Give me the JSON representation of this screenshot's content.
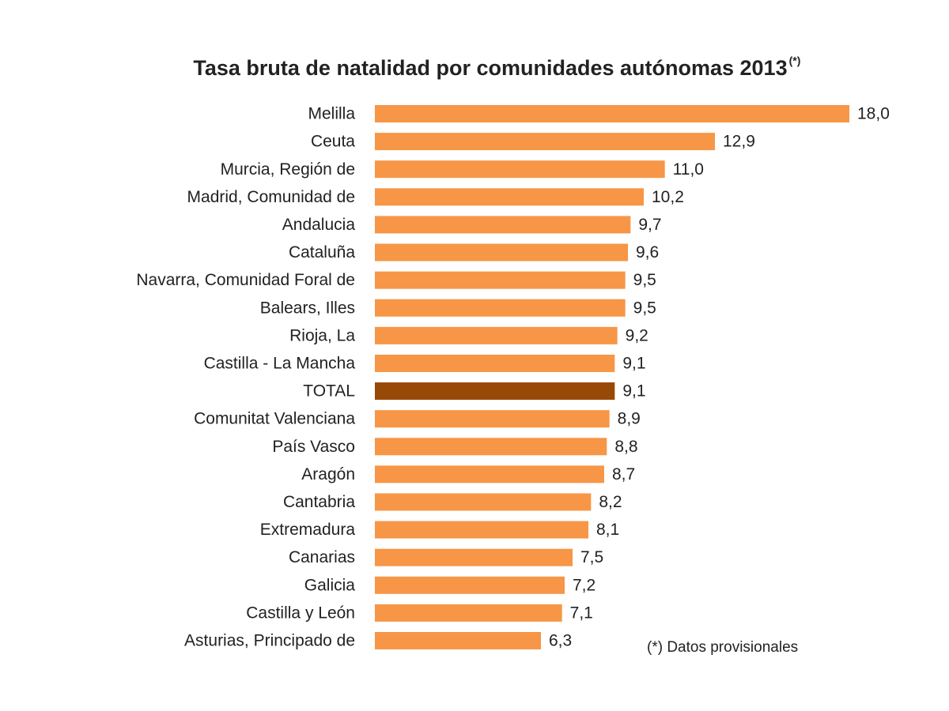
{
  "chart_data": {
    "type": "bar",
    "orientation": "horizontal",
    "title": "Tasa bruta de natalidad por comunidades autónomas 2013",
    "title_superscript": "(*)",
    "footnote": "(*)  Datos provisionales",
    "categories": [
      "Melilla",
      "Ceuta",
      "Murcia, Región de",
      "Madrid, Comunidad de",
      "Andalucia",
      "Cataluña",
      "Navarra, Comunidad Foral de",
      "Balears, Illes",
      "Rioja, La",
      "Castilla - La Mancha",
      "TOTAL",
      "Comunitat Valenciana",
      "País Vasco",
      "Aragón",
      "Cantabria",
      "Extremadura",
      "Canarias",
      "Galicia",
      "Castilla y León",
      "Asturias, Principado de"
    ],
    "values": [
      18.0,
      12.9,
      11.0,
      10.2,
      9.7,
      9.6,
      9.5,
      9.5,
      9.2,
      9.1,
      9.1,
      8.9,
      8.8,
      8.7,
      8.2,
      8.1,
      7.5,
      7.2,
      7.1,
      6.3
    ],
    "value_labels": [
      "18,0",
      "12,9",
      "11,0",
      "10,2",
      "9,7",
      "9,6",
      "9,5",
      "9,5",
      "9,2",
      "9,1",
      "9,1",
      "8,9",
      "8,8",
      "8,7",
      "8,2",
      "8,1",
      "7,5",
      "7,2",
      "7,1",
      "6,3"
    ],
    "colors": [
      "#f79646",
      "#f79646",
      "#f79646",
      "#f79646",
      "#f79646",
      "#f79646",
      "#f79646",
      "#f79646",
      "#f79646",
      "#f79646",
      "#984807",
      "#f79646",
      "#f79646",
      "#f79646",
      "#f79646",
      "#f79646",
      "#f79646",
      "#f79646",
      "#f79646",
      "#f79646"
    ]
  }
}
